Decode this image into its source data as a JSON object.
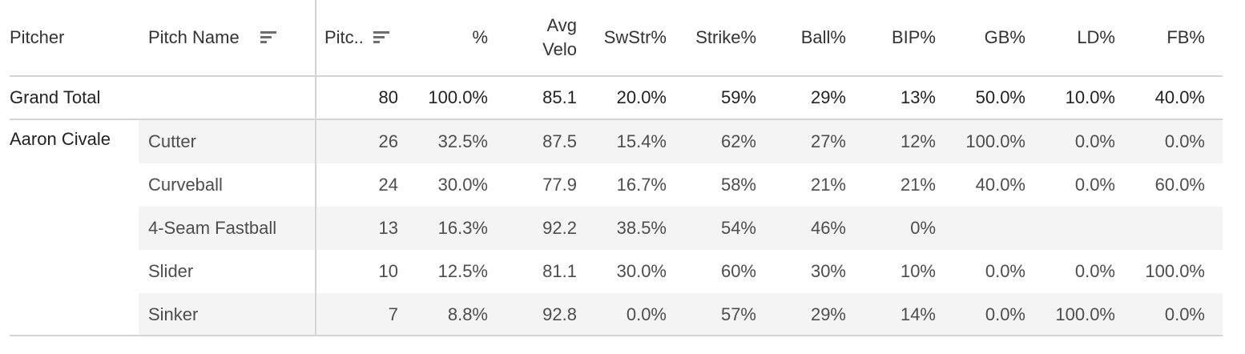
{
  "headers": {
    "pitcher": "Pitcher",
    "pitch_name": "Pitch Name",
    "pitches": "Pitc..",
    "pct": "%",
    "avg_velo_line1": "Avg",
    "avg_velo_line2": "Velo",
    "swstr": "SwStr%",
    "strike": "Strike%",
    "ball": "Ball%",
    "bip": "BIP%",
    "gb": "GB%",
    "ld": "LD%",
    "fb": "FB%"
  },
  "grand_total": {
    "label": "Grand Total",
    "pitches": "80",
    "pct": "100.0%",
    "avg_velo": "85.1",
    "swstr": "20.0%",
    "strike": "59%",
    "ball": "29%",
    "bip": "13%",
    "gb": "50.0%",
    "ld": "10.0%",
    "fb": "40.0%"
  },
  "pitcher": {
    "name": "Aaron Civale",
    "rows": [
      {
        "pitch": "Cutter",
        "pitches": "26",
        "pct": "32.5%",
        "avg_velo": "87.5",
        "swstr": "15.4%",
        "strike": "62%",
        "ball": "27%",
        "bip": "12%",
        "gb": "100.0%",
        "ld": "0.0%",
        "fb": "0.0%"
      },
      {
        "pitch": "Curveball",
        "pitches": "24",
        "pct": "30.0%",
        "avg_velo": "77.9",
        "swstr": "16.7%",
        "strike": "58%",
        "ball": "21%",
        "bip": "21%",
        "gb": "40.0%",
        "ld": "0.0%",
        "fb": "60.0%"
      },
      {
        "pitch": "4-Seam Fastball",
        "pitches": "13",
        "pct": "16.3%",
        "avg_velo": "92.2",
        "swstr": "38.5%",
        "strike": "54%",
        "ball": "46%",
        "bip": "0%",
        "gb": "",
        "ld": "",
        "fb": ""
      },
      {
        "pitch": "Slider",
        "pitches": "10",
        "pct": "12.5%",
        "avg_velo": "81.1",
        "swstr": "30.0%",
        "strike": "60%",
        "ball": "30%",
        "bip": "10%",
        "gb": "0.0%",
        "ld": "0.0%",
        "fb": "100.0%"
      },
      {
        "pitch": "Sinker",
        "pitches": "7",
        "pct": "8.8%",
        "avg_velo": "92.8",
        "swstr": "0.0%",
        "strike": "57%",
        "ball": "29%",
        "bip": "14%",
        "gb": "0.0%",
        "ld": "100.0%",
        "fb": "0.0%"
      }
    ]
  },
  "icons": {
    "pitch_name_sort": "sort-descending-icon",
    "pitches_sort": "sort-descending-icon"
  },
  "colors": {
    "row_shade": "#f4f4f4",
    "grid_line": "#d4d4d4",
    "text": "#333333"
  }
}
